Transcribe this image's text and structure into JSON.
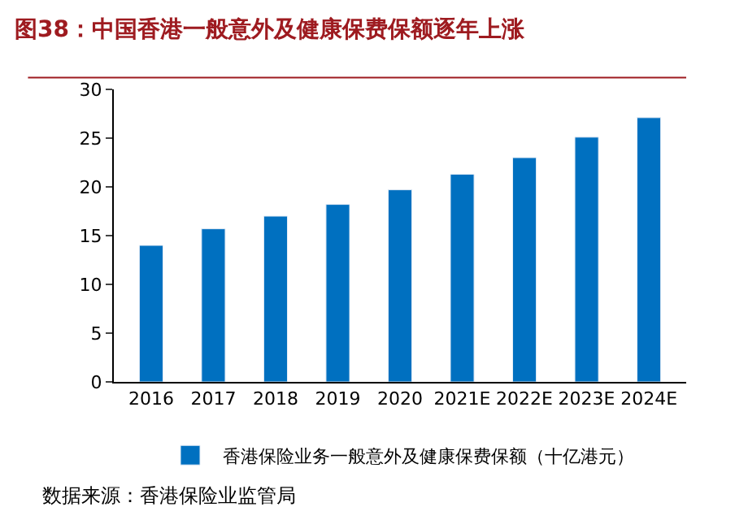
{
  "chart_data": {
    "type": "bar",
    "title": "图38：中国香港一般意外及健康保费保额逐年上涨",
    "categories": [
      "2016",
      "2017",
      "2018",
      "2019",
      "2020",
      "2021E",
      "2022E",
      "2023E",
      "2024E"
    ],
    "series": [
      {
        "name": "香港保险业务一般意外及健康保费保额（十亿港元）",
        "color": "#0070c0",
        "values": [
          14.0,
          15.7,
          17.0,
          18.2,
          19.7,
          21.3,
          23.0,
          25.1,
          27.1
        ]
      }
    ],
    "ylim": [
      0,
      30
    ],
    "yticks": [
      0,
      5,
      10,
      15,
      20,
      25,
      30
    ],
    "legend": "bottom",
    "annotations": [
      "数据来源：香港保险业监管局"
    ]
  }
}
